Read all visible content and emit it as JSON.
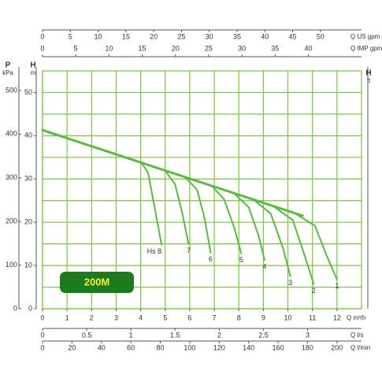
{
  "chart_data": {
    "type": "line",
    "annotation": "200M",
    "xlabel": "Q m³/h",
    "ylabel": "H",
    "yunit": "m",
    "xlim": [
      0,
      13
    ],
    "xticks": [
      0,
      1,
      2,
      3,
      4,
      5,
      6,
      7,
      8,
      9,
      10,
      11,
      12
    ],
    "ylim": [
      0,
      55
    ],
    "yticks": [
      0,
      10,
      20,
      30,
      40,
      50
    ],
    "yminor": [
      5,
      15,
      25,
      35,
      45
    ],
    "grid": true,
    "grid_color": "#7dc242",
    "curve_color": "#5cb946",
    "p_axis": {
      "label": "P",
      "unit": "kPa",
      "lim": [
        0,
        545
      ],
      "ticks": [
        0,
        100,
        200,
        300,
        400,
        500
      ]
    },
    "ft_axis": {
      "label": "H",
      "unit": "ft"
    },
    "top_axes": [
      {
        "label": "Q US gpm",
        "lim": [
          0,
          57.4
        ],
        "ticks": [
          0,
          5,
          10,
          15,
          20,
          25,
          30,
          35,
          40,
          45,
          50
        ]
      },
      {
        "label": "Q IMP gpm",
        "lim": [
          0,
          48
        ],
        "ticks": [
          0,
          5,
          10,
          15,
          20,
          25,
          30,
          35,
          40
        ]
      }
    ],
    "bottom_axes": [
      {
        "label": "Q l/s",
        "lim": [
          0,
          3.61
        ],
        "ticks": [
          0,
          0.5,
          1,
          1.5,
          2,
          2.5,
          3
        ]
      },
      {
        "label": "Q l/min",
        "lim": [
          0,
          216.7
        ],
        "ticks": [
          0,
          20,
          40,
          60,
          80,
          100,
          120,
          140,
          160,
          180,
          200
        ]
      }
    ],
    "envelope": {
      "x": [
        0,
        10.6
      ],
      "values": [
        41.3,
        21.5
      ]
    },
    "series": [
      {
        "name": "Hs 8",
        "x": [
          4.0,
          4.3,
          4.55,
          4.85
        ],
        "values": [
          34.0,
          31.5,
          24,
          14.8
        ]
      },
      {
        "name": "7",
        "x": [
          5.0,
          5.4,
          5.7,
          5.95
        ],
        "values": [
          31.9,
          28.8,
          22,
          15
        ]
      },
      {
        "name": "6",
        "x": [
          5.8,
          6.3,
          6.6,
          6.85
        ],
        "values": [
          30.5,
          27.5,
          21,
          13
        ]
      },
      {
        "name": "5",
        "x": [
          6.9,
          7.4,
          7.8,
          8.1
        ],
        "values": [
          28.4,
          25.3,
          19,
          12.8
        ]
      },
      {
        "name": "4",
        "x": [
          7.8,
          8.4,
          8.8,
          9.05
        ],
        "values": [
          26.7,
          23.5,
          17,
          11.3
        ]
      },
      {
        "name": "3",
        "x": [
          8.6,
          9.3,
          9.8,
          10.1
        ],
        "values": [
          25.2,
          22,
          14,
          7.5
        ]
      },
      {
        "name": "2",
        "x": [
          9.4,
          10.2,
          10.7,
          11.05
        ],
        "values": [
          23.7,
          20.5,
          12,
          5.7
        ]
      },
      {
        "name": "1",
        "x": [
          10.3,
          11.1,
          11.6,
          12.0
        ],
        "values": [
          22.0,
          19.2,
          12,
          6.8
        ]
      }
    ]
  }
}
